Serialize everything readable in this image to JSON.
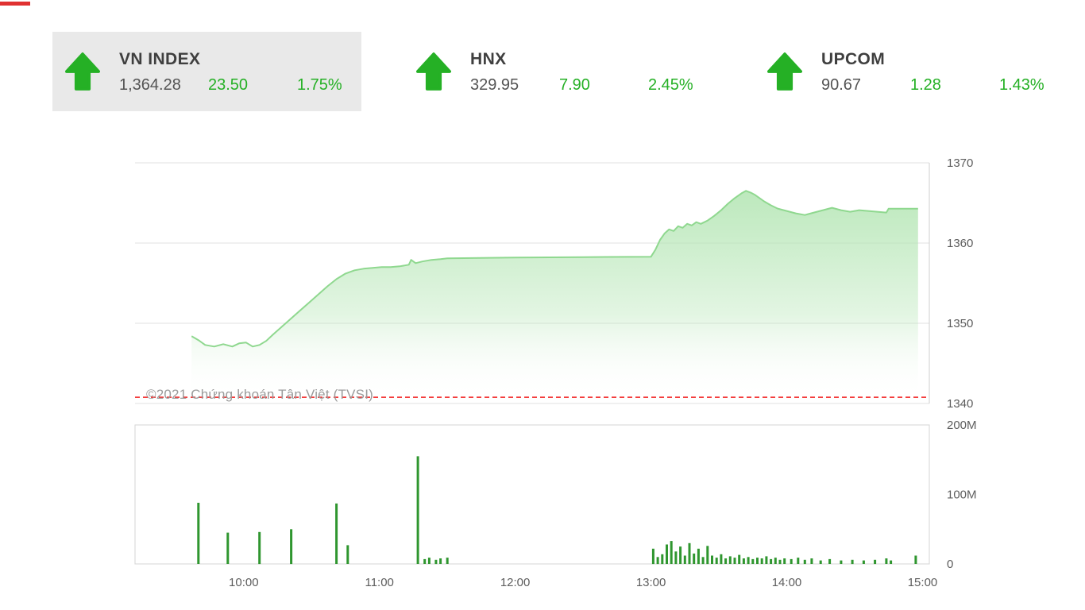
{
  "page": {
    "accent_green": "#25b025",
    "selected_card_bg": "#e9e9e9",
    "top_mark_color": "#e03131"
  },
  "indices": [
    {
      "id": "vnindex",
      "name": "VN INDEX",
      "value": "1,364.28",
      "change": "23.50",
      "change_pct": "1.75%",
      "direction": "up",
      "selected": true
    },
    {
      "id": "hnx",
      "name": "HNX",
      "value": "329.95",
      "change": "7.90",
      "change_pct": "2.45%",
      "direction": "up",
      "selected": false
    },
    {
      "id": "upcom",
      "name": "UPCOM",
      "value": "90.67",
      "change": "1.28",
      "change_pct": "1.43%",
      "direction": "up",
      "selected": false
    }
  ],
  "chart_data": [
    {
      "type": "area",
      "x": [
        "09:37",
        "09:40",
        "09:43",
        "09:47",
        "09:51",
        "09:55",
        "09:58",
        "10:01",
        "10:04",
        "10:07",
        "10:10",
        "10:13",
        "10:17",
        "10:21",
        "10:25",
        "10:29",
        "10:33",
        "10:37",
        "10:41",
        "10:45",
        "10:49",
        "10:53",
        "10:57",
        "11:01",
        "11:05",
        "11:09",
        "11:13",
        "11:14",
        "11:16",
        "11:19",
        "11:23",
        "11:27",
        "11:30",
        "12:00",
        "12:30",
        "13:00",
        "13:02",
        "13:04",
        "13:06",
        "13:08",
        "13:10",
        "13:12",
        "13:14",
        "13:16",
        "13:18",
        "13:20",
        "13:22",
        "13:25",
        "13:28",
        "13:31",
        "13:34",
        "13:37",
        "13:40",
        "13:42",
        "13:44",
        "13:46",
        "13:48",
        "13:50",
        "13:53",
        "13:56",
        "14:00",
        "14:04",
        "14:08",
        "14:12",
        "14:16",
        "14:20",
        "14:24",
        "14:28",
        "14:32",
        "14:36",
        "14:40",
        "14:44",
        "14:45",
        "14:58"
      ],
      "values": [
        1348.4,
        1347.9,
        1347.3,
        1347.1,
        1347.4,
        1347.1,
        1347.5,
        1347.6,
        1347.1,
        1347.3,
        1347.8,
        1348.6,
        1349.6,
        1350.6,
        1351.6,
        1352.6,
        1353.6,
        1354.6,
        1355.5,
        1356.2,
        1356.6,
        1356.8,
        1356.9,
        1357.0,
        1357.0,
        1357.1,
        1357.3,
        1357.9,
        1357.5,
        1357.7,
        1357.9,
        1358.0,
        1358.1,
        1358.2,
        1358.25,
        1358.3,
        1359.2,
        1360.4,
        1361.2,
        1361.7,
        1361.5,
        1362.1,
        1361.9,
        1362.4,
        1362.2,
        1362.6,
        1362.4,
        1362.8,
        1363.4,
        1364.1,
        1364.9,
        1365.6,
        1366.2,
        1366.5,
        1366.3,
        1366.0,
        1365.6,
        1365.2,
        1364.7,
        1364.3,
        1364.0,
        1363.7,
        1363.5,
        1363.8,
        1364.1,
        1364.4,
        1364.1,
        1363.9,
        1364.1,
        1364.0,
        1363.9,
        1363.8,
        1364.28,
        1364.28
      ],
      "ylim": [
        1340,
        1370
      ],
      "yticks": [
        1370,
        1360,
        1350,
        1340
      ],
      "xticks": [
        "10:00",
        "11:00",
        "12:00",
        "13:00",
        "14:00",
        "15:00"
      ],
      "xlim": [
        "09:12",
        "15:03"
      ],
      "grid": true,
      "line_color": "#8fd88f",
      "fill_top": "#b5e6b5",
      "reference_line": {
        "value": 1340.78,
        "color": "#f22222",
        "style": "dashed"
      },
      "watermark": "©2021 Chứng khoán Tân Việt (TVSI)"
    },
    {
      "type": "bar",
      "x": [
        "09:40",
        "09:53",
        "10:07",
        "10:21",
        "10:41",
        "10:46",
        "11:17",
        "11:20",
        "11:22",
        "11:25",
        "11:27",
        "11:30",
        "13:01",
        "13:03",
        "13:05",
        "13:07",
        "13:09",
        "13:11",
        "13:13",
        "13:15",
        "13:17",
        "13:19",
        "13:21",
        "13:23",
        "13:25",
        "13:27",
        "13:29",
        "13:31",
        "13:33",
        "13:35",
        "13:37",
        "13:39",
        "13:41",
        "13:43",
        "13:45",
        "13:47",
        "13:49",
        "13:51",
        "13:53",
        "13:55",
        "13:57",
        "13:59",
        "14:02",
        "14:05",
        "14:08",
        "14:11",
        "14:15",
        "14:19",
        "14:24",
        "14:29",
        "14:34",
        "14:39",
        "14:44",
        "14:46",
        "14:57"
      ],
      "values": [
        88,
        45,
        46,
        50,
        87,
        27,
        155,
        7,
        9,
        6,
        8,
        9,
        22,
        10,
        14,
        28,
        33,
        18,
        25,
        12,
        30,
        15,
        22,
        10,
        26,
        12,
        9,
        14,
        8,
        11,
        9,
        13,
        8,
        10,
        7,
        9,
        8,
        11,
        7,
        9,
        6,
        8,
        7,
        9,
        6,
        8,
        5,
        7,
        5,
        6,
        5,
        6,
        8,
        5,
        12
      ],
      "ylim": [
        0,
        200
      ],
      "yticks": [
        200,
        100,
        0
      ],
      "ytick_labels": [
        "200M",
        "100M",
        "0"
      ],
      "bar_color": "#2f962f"
    }
  ]
}
